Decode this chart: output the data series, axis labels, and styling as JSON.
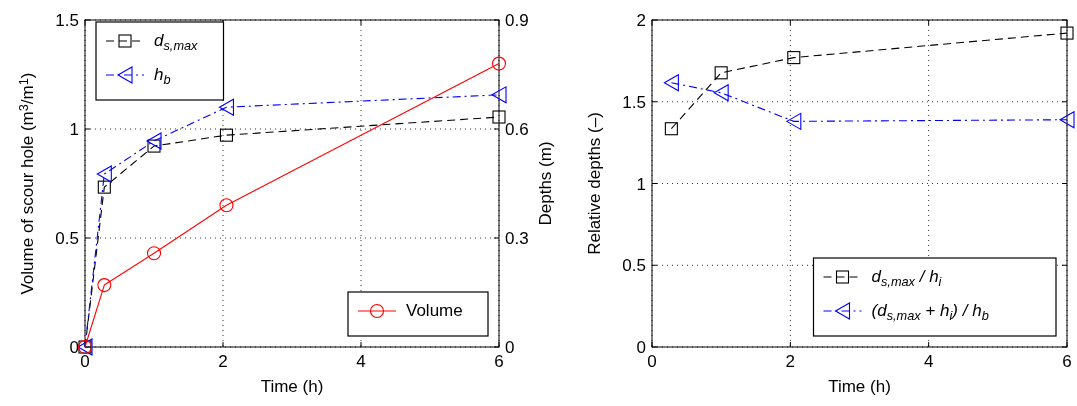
{
  "chart_data": [
    {
      "type": "line",
      "xlabel": "Time (h)",
      "ylabel": "Volume of scour hole (m$^{3}$/m$^{1}$)",
      "y2label": "Depths (m)",
      "xlim": [
        0,
        6
      ],
      "xticks": [
        0,
        2,
        4,
        6
      ],
      "ylim": [
        0,
        1.5
      ],
      "yticks": [
        0,
        0.5,
        1,
        1.5
      ],
      "y2lim": [
        0,
        0.9
      ],
      "y2ticks": [
        0,
        0.3,
        0.6,
        0.9
      ],
      "grid": true,
      "legend": "top left",
      "series": [
        {
          "name": "d$_{s,max}$",
          "color": "#000000",
          "axis": "y2",
          "marker": "square",
          "line_style": "dashed",
          "x": [
            0,
            0.28,
            1.0,
            2.05,
            6
          ],
          "values": [
            0,
            0.44,
            0.553,
            0.583,
            0.633
          ]
        },
        {
          "name": "h$_{b}$",
          "color": "#0000ff",
          "axis": "y2",
          "marker": "triangle",
          "line_style": "dashdot",
          "x": [
            0,
            0.28,
            1.0,
            2.05,
            6
          ],
          "values": [
            0,
            0.476,
            0.567,
            0.66,
            0.694
          ]
        },
        {
          "name": "Volume",
          "color": "#ff0000",
          "axis": "y",
          "marker": "circle",
          "line_style": "solid",
          "x": [
            0,
            0.28,
            1.0,
            2.05,
            6
          ],
          "values": [
            0,
            0.284,
            0.43,
            0.65,
            1.3
          ]
        }
      ]
    },
    {
      "type": "line",
      "xlabel": "Time (h)",
      "ylabel": "Relative depths (–)",
      "xlim": [
        0,
        6
      ],
      "xticks": [
        0,
        2,
        4,
        6
      ],
      "ylim": [
        0,
        2
      ],
      "yticks": [
        0,
        0.5,
        1,
        1.5,
        2
      ],
      "grid": true,
      "legend": "bottom right",
      "series": [
        {
          "name": "d$_{s,max}$ / h$_{i}$",
          "color": "#000000",
          "marker": "square",
          "line_style": "dashed",
          "x": [
            0.28,
            1.0,
            2.05,
            6
          ],
          "values": [
            1.335,
            1.677,
            1.77,
            1.92
          ]
        },
        {
          "name": "(d$_{s,max}$ + h$_{i}$) / h$_{b}$",
          "color": "#0000ff",
          "marker": "triangle",
          "line_style": "dashdot",
          "x": [
            0.28,
            1.0,
            2.05,
            6
          ],
          "values": [
            1.616,
            1.555,
            1.38,
            1.39
          ]
        }
      ]
    }
  ]
}
